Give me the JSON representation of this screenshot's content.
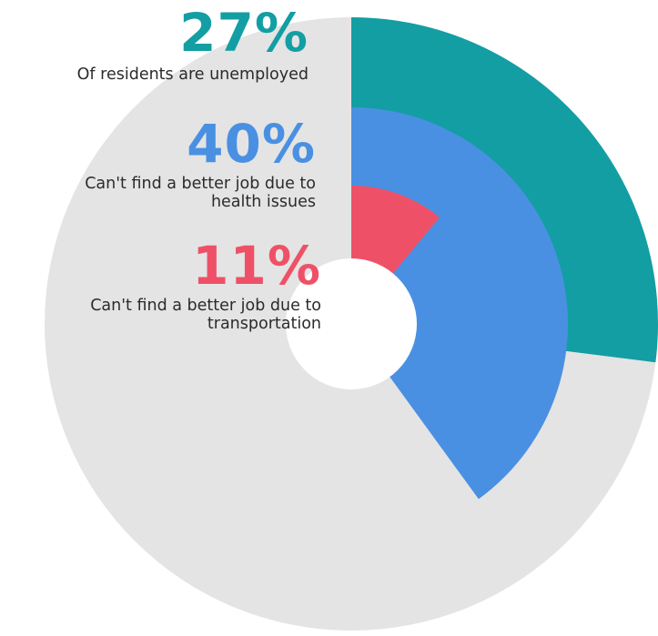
{
  "chart_data": {
    "type": "radial-bar",
    "background_color": "#e4e4e4",
    "series": [
      {
        "value": 27,
        "value_label": "27%",
        "description_lines": [
          "Of residents are unemployed"
        ],
        "color": "#139ea3"
      },
      {
        "value": 40,
        "value_label": "40%",
        "description_lines": [
          "Can't find a better job due to",
          "health issues"
        ],
        "color": "#4a90e2"
      },
      {
        "value": 11,
        "value_label": "11%",
        "description_lines": [
          "Can't find a better job due to",
          "transportation"
        ],
        "color": "#ee5167"
      }
    ]
  }
}
